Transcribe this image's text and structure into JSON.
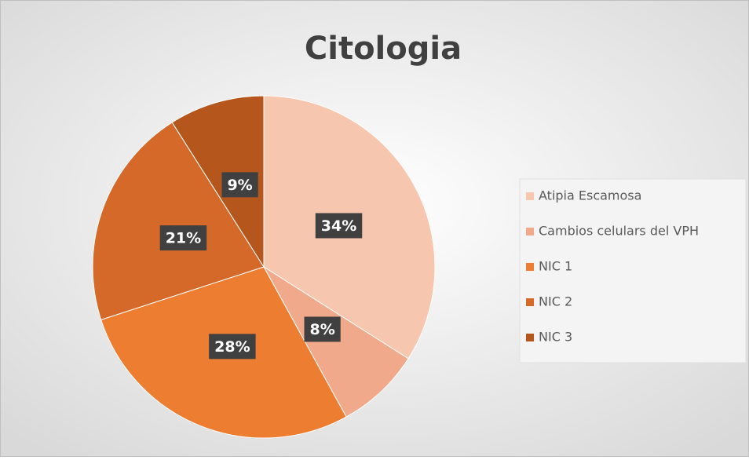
{
  "chart_data": {
    "type": "pie",
    "title": "Citologia",
    "categories": [
      "Atipia Escamosa",
      "Cambios celulars del VPH",
      "NIC 1",
      "NIC 2",
      "NIC 3"
    ],
    "values": [
      34,
      8,
      28,
      21,
      9
    ],
    "value_labels": [
      "34%",
      "8%",
      "28%",
      "21%",
      "9%"
    ],
    "colors": [
      "#F6C6AF",
      "#F0A98A",
      "#ED7D31",
      "#D4692A",
      "#B5571D"
    ],
    "legend": "right"
  }
}
